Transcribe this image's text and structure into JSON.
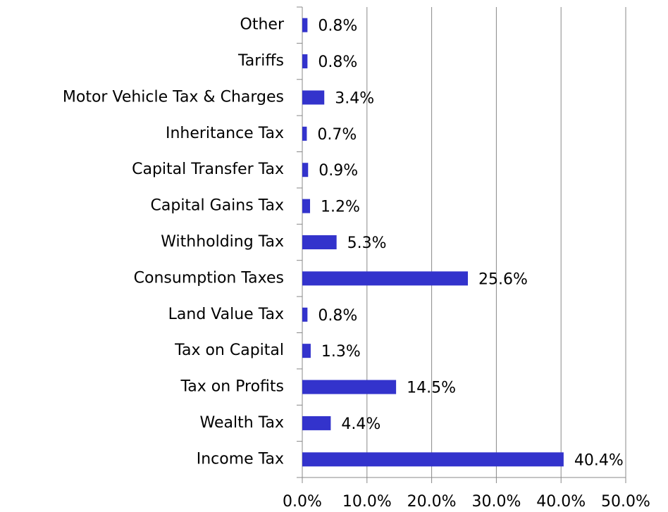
{
  "chart_data": {
    "type": "hbar",
    "categories": [
      "Other",
      "Tariffs",
      "Motor Vehicle Tax & Charges",
      "Inheritance Tax",
      "Capital Transfer Tax",
      "Capital Gains Tax",
      "Withholding Tax",
      "Consumption Taxes",
      "Land Value Tax",
      "Tax on Capital",
      "Tax on Profits",
      "Wealth Tax",
      "Income Tax"
    ],
    "values": [
      0.8,
      0.8,
      3.4,
      0.7,
      0.9,
      1.2,
      5.3,
      25.6,
      0.8,
      1.3,
      14.5,
      4.4,
      40.4
    ],
    "value_labels": [
      "0.8%",
      "0.8%",
      "3.4%",
      "0.7%",
      "0.9%",
      "1.2%",
      "5.3%",
      "25.6%",
      "0.8%",
      "1.3%",
      "14.5%",
      "4.4%",
      "40.4%"
    ],
    "color": "#3333cc",
    "xlim": [
      0,
      50
    ],
    "xticks": [
      {
        "value": 0,
        "label": "0.0%"
      },
      {
        "value": 10,
        "label": "10.0%"
      },
      {
        "value": 20,
        "label": "20.0%"
      },
      {
        "value": 30,
        "label": "30.0%"
      },
      {
        "value": 40,
        "label": "40.0%"
      },
      {
        "value": 50,
        "label": "50.0%"
      }
    ],
    "grid": true
  }
}
